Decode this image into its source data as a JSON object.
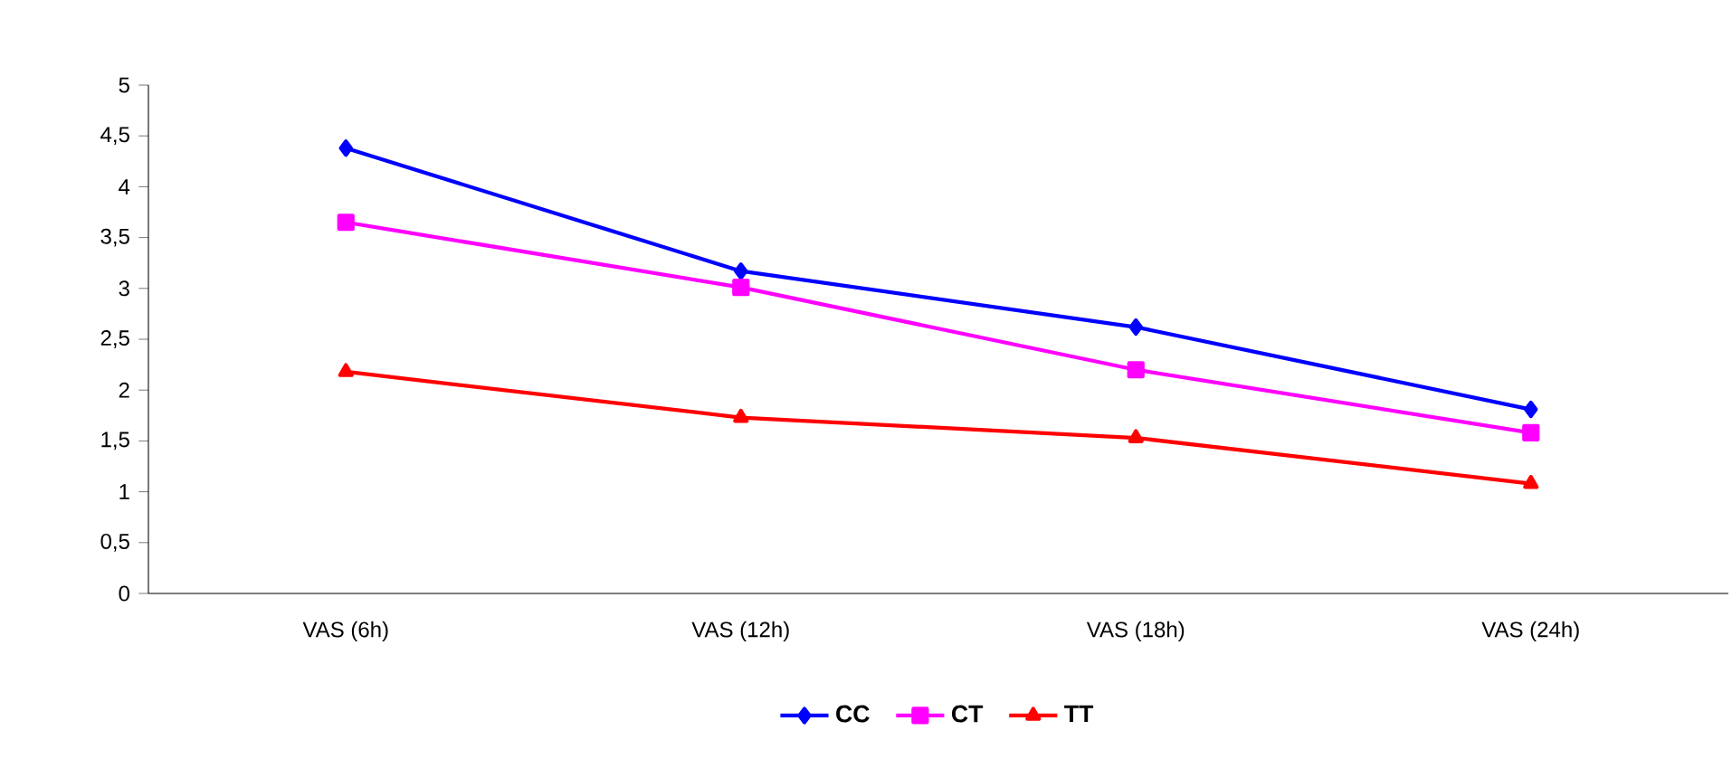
{
  "chart_data": {
    "type": "line",
    "categories": [
      "VAS  (6h)",
      "VAS  (12h)",
      "VAS  (18h)",
      "VAS  (24h)"
    ],
    "series": [
      {
        "name": "CC",
        "color": "#0000ff",
        "marker": "diamond",
        "values": [
          4.38,
          3.17,
          2.62,
          1.81
        ]
      },
      {
        "name": "CT",
        "color": "#ff00ff",
        "marker": "square",
        "values": [
          3.65,
          3.01,
          2.2,
          1.58
        ]
      },
      {
        "name": "TT",
        "color": "#ff0000",
        "marker": "triangle",
        "values": [
          2.18,
          1.73,
          1.53,
          1.08
        ]
      }
    ],
    "ylim": [
      0,
      5
    ],
    "yticks": [
      0,
      {
        "value": 0.5,
        "label": "0,5"
      },
      1,
      {
        "value": 1.5,
        "label": "1,5"
      },
      2,
      {
        "value": 2.5,
        "label": "2,5"
      },
      3,
      {
        "value": 3.5,
        "label": "3,5"
      },
      4,
      {
        "value": 4.5,
        "label": "4,5"
      },
      5
    ],
    "grid": false,
    "legend": "bottom",
    "line_style": "solid"
  }
}
